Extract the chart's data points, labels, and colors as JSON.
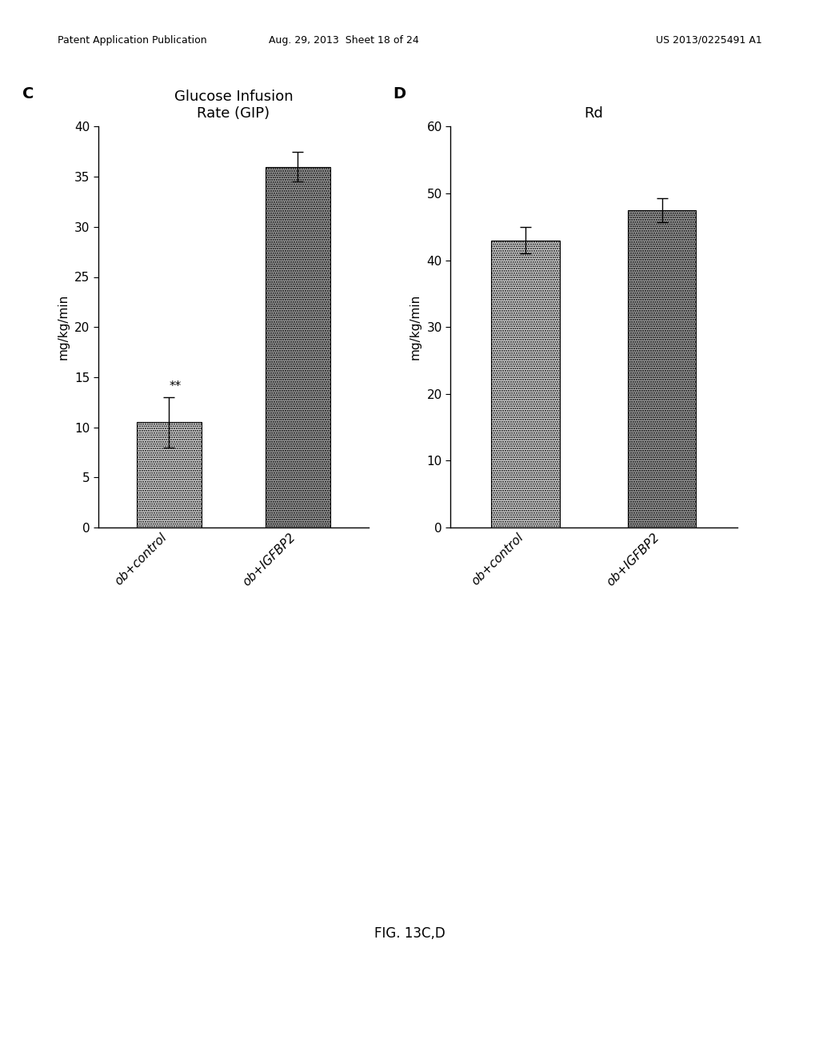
{
  "panel_C": {
    "title": "Glucose Infusion\nRate (GIP)",
    "panel_label": "C",
    "categories": [
      "ob+control",
      "ob+IGFBP2"
    ],
    "values": [
      10.5,
      36.0
    ],
    "errors": [
      2.5,
      1.5
    ],
    "ylim": [
      0,
      40
    ],
    "yticks": [
      0,
      5,
      10,
      15,
      20,
      25,
      30,
      35,
      40
    ],
    "ylabel": "mg/kg/min",
    "bar_colors": [
      "#d8d8d8",
      "#a0a0a0"
    ],
    "annotation": "**",
    "annotation_bar_idx": 0
  },
  "panel_D": {
    "title": "Rd",
    "panel_label": "D",
    "categories": [
      "ob+control",
      "ob+IGFBP2"
    ],
    "values": [
      43.0,
      47.5
    ],
    "errors": [
      2.0,
      1.8
    ],
    "ylim": [
      0,
      60
    ],
    "yticks": [
      0,
      10,
      20,
      30,
      40,
      50,
      60
    ],
    "ylabel": "mg/kg/min",
    "bar_colors": [
      "#d8d8d8",
      "#a0a0a0"
    ]
  },
  "figure_label": "FIG. 13C,D",
  "header_left": "Patent Application Publication",
  "header_mid": "Aug. 29, 2013  Sheet 18 of 24",
  "header_right": "US 2013/0225491 A1",
  "background_color": "#ffffff",
  "bar_width": 0.5,
  "title_fontsize": 13,
  "axis_fontsize": 11,
  "tick_fontsize": 11,
  "panel_label_fontsize": 14,
  "annotation_fontsize": 11,
  "header_fontsize": 9,
  "figure_label_fontsize": 12
}
